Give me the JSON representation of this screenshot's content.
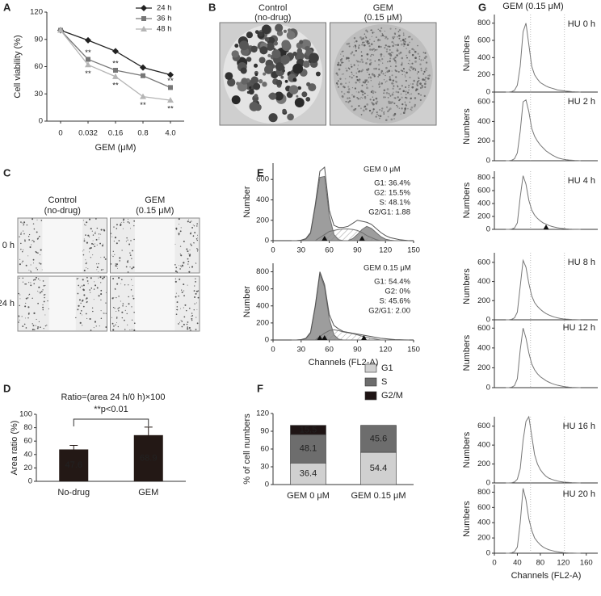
{
  "chart_data": [
    {
      "type": "line",
      "label": "A",
      "y_label": "Cell viability (%)",
      "x_label": "GEM (μM)",
      "categories": [
        "0",
        "0.032",
        "0.16",
        "0.8",
        "4.0"
      ],
      "ylim": [
        0,
        120
      ],
      "yticks": [
        0,
        30,
        60,
        90,
        120
      ],
      "legend": "upper right",
      "series": [
        {
          "name": "24 h",
          "color": "#222222",
          "marker": "diamond",
          "values": [
            100,
            89,
            77,
            59,
            51
          ]
        },
        {
          "name": "36 h",
          "color": "#777777",
          "marker": "square",
          "values": [
            100,
            68,
            56,
            50,
            37
          ],
          "significance": [
            null,
            "**",
            "**",
            "*",
            "**"
          ]
        },
        {
          "name": "48 h",
          "color": "#b5b5b5",
          "marker": "triangle",
          "values": [
            100,
            62,
            49,
            27,
            23
          ],
          "significance": [
            null,
            "**",
            "**",
            "**",
            "**"
          ]
        }
      ]
    },
    {
      "type": "image",
      "label": "B",
      "columns": [
        [
          "Control",
          "(no-drug)"
        ],
        [
          "GEM",
          "(0.15 μM)"
        ]
      ]
    },
    {
      "type": "image",
      "label": "C",
      "columns": [
        [
          "Control",
          "(no-drug)"
        ],
        [
          "GEM",
          "(0.15 μM)"
        ]
      ],
      "rows": [
        "0 h",
        "24 h"
      ]
    },
    {
      "type": "bar",
      "label": "D",
      "title": "Ratio=(area 24 h/0 h)×100",
      "annotation": "**p<0.01",
      "y_label": "Area ratio (%)",
      "categories": [
        "No-drug",
        "GEM"
      ],
      "values": [
        47.6,
        68.9
      ],
      "errors": [
        6,
        12
      ],
      "color": "#231815",
      "ylim": [
        0,
        100
      ],
      "yticks": [
        0,
        20,
        40,
        60,
        80,
        100
      ],
      "data_labels": true
    },
    {
      "type": "histogram",
      "label": "E",
      "title": "GEM 0 μM",
      "annotations": [
        "G1: 36.4%",
        "G2: 15.5%",
        "S: 48.1%",
        "G2/G1: 1.88"
      ],
      "y_label": "Number",
      "xlim": [
        0,
        150
      ],
      "xticks": [
        0,
        30,
        60,
        90,
        120,
        150
      ],
      "ylim": [
        0,
        760
      ],
      "yticks": [
        0,
        200,
        400,
        600
      ],
      "markers": [
        55,
        95
      ],
      "x": [
        20,
        25,
        30,
        35,
        40,
        45,
        50,
        55,
        60,
        65,
        70,
        75,
        80,
        85,
        90,
        95,
        100,
        105,
        110,
        115,
        120,
        125,
        130,
        135,
        140,
        145
      ],
      "series": [
        {
          "color": "#6e6e6e",
          "fill": "#8c8c8c",
          "values": [
            0,
            0,
            3,
            15,
            70,
            330,
            620,
            630,
            250,
            60,
            10,
            0,
            0,
            0,
            0,
            0,
            0,
            0,
            0,
            0,
            0,
            0,
            0,
            0,
            0,
            0
          ]
        },
        {
          "color": "#6e6e6e",
          "fill": "#8c8c8c",
          "values": [
            0,
            0,
            0,
            0,
            0,
            0,
            0,
            0,
            0,
            0,
            0,
            0,
            0,
            20,
            60,
            110,
            140,
            120,
            80,
            40,
            15,
            5,
            0,
            0,
            0,
            0
          ]
        },
        {
          "color": "#6e6e6e",
          "pattern": "hatch",
          "values": [
            0,
            0,
            0,
            0,
            0,
            0,
            30,
            60,
            90,
            100,
            110,
            115,
            115,
            110,
            100,
            80,
            50,
            30,
            10,
            0,
            0,
            0,
            0,
            0,
            0,
            0
          ]
        },
        {
          "color": "#555555",
          "values": [
            0,
            0,
            5,
            20,
            80,
            350,
            680,
            720,
            300,
            150,
            130,
            130,
            140,
            170,
            200,
            190,
            180,
            160,
            120,
            80,
            50,
            30,
            20,
            10,
            5,
            0
          ]
        }
      ]
    },
    {
      "type": "histogram",
      "title": "GEM 0.15 μM",
      "annotations": [
        "G1: 54.4%",
        "G2: 0%",
        "S: 45.6%",
        "G2/G1: 2.00"
      ],
      "y_label": "Number",
      "x_label": "Channels (FL2-A)",
      "xlim": [
        0,
        150
      ],
      "xticks": [
        0,
        30,
        60,
        90,
        120,
        150
      ],
      "ylim": [
        0,
        900
      ],
      "yticks": [
        0,
        200,
        400,
        600,
        800
      ],
      "markers": [
        50,
        55,
        97
      ],
      "x": [
        20,
        25,
        30,
        35,
        40,
        45,
        50,
        55,
        60,
        65,
        70,
        75,
        80,
        85,
        90,
        95,
        100,
        105,
        110,
        115,
        120,
        125,
        130,
        135,
        140,
        145
      ],
      "series": [
        {
          "color": "#6e6e6e",
          "fill": "#8c8c8c",
          "values": [
            0,
            0,
            3,
            15,
            80,
            380,
            780,
            620,
            250,
            60,
            10,
            0,
            0,
            0,
            0,
            0,
            0,
            0,
            0,
            0,
            0,
            0,
            0,
            0,
            0,
            0
          ]
        },
        {
          "color": "#6e6e6e",
          "pattern": "hatch",
          "values": [
            0,
            0,
            0,
            0,
            0,
            0,
            40,
            80,
            110,
            120,
            110,
            95,
            85,
            75,
            60,
            45,
            30,
            20,
            10,
            0,
            0,
            0,
            0,
            0,
            0,
            0
          ]
        },
        {
          "color": "#555555",
          "values": [
            0,
            0,
            5,
            20,
            90,
            400,
            800,
            650,
            300,
            170,
            130,
            100,
            90,
            80,
            70,
            60,
            50,
            40,
            30,
            20,
            15,
            10,
            5,
            3,
            1,
            0
          ]
        }
      ]
    },
    {
      "type": "stacked_bar",
      "label": "F",
      "y_label": "% of cell numbers",
      "categories": [
        "GEM 0 μM",
        "GEM 0.15 μM"
      ],
      "ylim": [
        0,
        120
      ],
      "yticks": [
        0,
        30,
        60,
        90,
        120
      ],
      "data_labels": true,
      "series": [
        {
          "name": "G1",
          "color": "#d0d0d0",
          "values": [
            36.4,
            54.4
          ]
        },
        {
          "name": "S",
          "color": "#6d6d6d",
          "values": [
            48.1,
            45.6
          ]
        },
        {
          "name": "G2/M",
          "color": "#1e1414",
          "values": [
            15.5,
            0
          ]
        }
      ]
    },
    {
      "type": "histogram",
      "label": "G",
      "title": "GEM (0.15 μM)",
      "panel_title": "HU 0 h",
      "y_label": "Numbers",
      "xlim": [
        0,
        180
      ],
      "ylim": [
        0,
        900
      ],
      "yticks": [
        0,
        200,
        400,
        600,
        800
      ],
      "reference_lines": [
        63,
        122
      ],
      "x": [
        20,
        25,
        30,
        35,
        40,
        45,
        50,
        55,
        60,
        65,
        70,
        75,
        80,
        85,
        90,
        95,
        100,
        105,
        110,
        115,
        120,
        125,
        130,
        135,
        140,
        145,
        150
      ],
      "series": [
        {
          "color": "#777777",
          "values": [
            0,
            0,
            5,
            20,
            80,
            300,
            700,
            800,
            550,
            300,
            200,
            150,
            110,
            90,
            70,
            55,
            45,
            35,
            25,
            20,
            15,
            10,
            8,
            5,
            3,
            2,
            0
          ]
        }
      ]
    },
    {
      "type": "histogram",
      "panel_title": "HU 2 h",
      "y_label": "Numbers",
      "xlim": [
        0,
        180
      ],
      "ylim": [
        0,
        700
      ],
      "yticks": [
        0,
        200,
        400,
        600
      ],
      "reference_lines": [
        63,
        122
      ],
      "x": [
        20,
        25,
        30,
        35,
        40,
        45,
        50,
        55,
        60,
        65,
        70,
        75,
        80,
        85,
        90,
        95,
        100,
        105,
        110,
        115,
        120,
        125,
        130,
        135,
        140,
        145,
        150
      ],
      "series": [
        {
          "color": "#777777",
          "values": [
            0,
            0,
            5,
            20,
            80,
            300,
            600,
            620,
            500,
            330,
            250,
            200,
            160,
            130,
            100,
            80,
            60,
            45,
            30,
            22,
            15,
            10,
            7,
            5,
            3,
            2,
            0
          ]
        }
      ]
    },
    {
      "type": "histogram",
      "panel_title": "HU 4 h",
      "y_label": "Numbers",
      "xlim": [
        0,
        180
      ],
      "ylim": [
        0,
        900
      ],
      "yticks": [
        0,
        200,
        400,
        600,
        800
      ],
      "reference_lines": [
        63,
        122
      ],
      "markers": [
        90
      ],
      "x": [
        20,
        25,
        30,
        35,
        40,
        45,
        50,
        55,
        60,
        65,
        70,
        75,
        80,
        85,
        90,
        95,
        100,
        105,
        110,
        115,
        120,
        125,
        130,
        135,
        140,
        145,
        150
      ],
      "series": [
        {
          "color": "#777777",
          "values": [
            0,
            0,
            5,
            20,
            100,
            500,
            830,
            700,
            450,
            300,
            220,
            170,
            130,
            100,
            80,
            60,
            45,
            35,
            25,
            18,
            12,
            8,
            5,
            3,
            2,
            1,
            0
          ]
        }
      ]
    },
    {
      "type": "histogram",
      "panel_title": "HU 8 h",
      "y_label": "Numbers",
      "xlim": [
        0,
        180
      ],
      "ylim": [
        0,
        700
      ],
      "yticks": [
        0,
        200,
        400,
        600
      ],
      "reference_lines": [
        63,
        122
      ],
      "x": [
        20,
        25,
        30,
        35,
        40,
        45,
        50,
        55,
        60,
        65,
        70,
        75,
        80,
        85,
        90,
        95,
        100,
        105,
        110,
        115,
        120,
        125,
        130,
        135,
        140,
        145,
        150
      ],
      "series": [
        {
          "color": "#777777",
          "values": [
            0,
            0,
            5,
            20,
            80,
            350,
            620,
            550,
            380,
            250,
            180,
            140,
            110,
            85,
            65,
            50,
            38,
            28,
            20,
            14,
            10,
            7,
            5,
            3,
            2,
            1,
            0
          ]
        }
      ]
    },
    {
      "type": "histogram",
      "panel_title": "HU 12 h",
      "y_label": "Numbers",
      "xlim": [
        0,
        180
      ],
      "ylim": [
        0,
        700
      ],
      "yticks": [
        0,
        200,
        400,
        600
      ],
      "reference_lines": [
        63,
        122
      ],
      "x": [
        20,
        25,
        30,
        35,
        40,
        45,
        50,
        55,
        60,
        65,
        70,
        75,
        80,
        85,
        90,
        95,
        100,
        105,
        110,
        115,
        120,
        125,
        130,
        135,
        140,
        145,
        150
      ],
      "series": [
        {
          "color": "#777777",
          "values": [
            0,
            0,
            5,
            20,
            90,
            380,
            600,
            500,
            350,
            240,
            180,
            140,
            110,
            90,
            70,
            55,
            42,
            32,
            24,
            18,
            12,
            8,
            5,
            3,
            2,
            1,
            0
          ]
        }
      ]
    },
    {
      "type": "histogram",
      "panel_title": "HU 16 h",
      "y_label": "Numbers",
      "xlim": [
        0,
        180
      ],
      "ylim": [
        0,
        700
      ],
      "yticks": [
        0,
        200,
        400,
        600
      ],
      "reference_lines": [
        63,
        122
      ],
      "x": [
        20,
        25,
        30,
        35,
        40,
        45,
        50,
        55,
        60,
        65,
        70,
        75,
        80,
        85,
        90,
        95,
        100,
        105,
        110,
        115,
        120,
        125,
        130,
        135,
        140,
        145,
        150
      ],
      "series": [
        {
          "color": "#777777",
          "values": [
            0,
            0,
            2,
            10,
            40,
            150,
            450,
            650,
            700,
            500,
            300,
            200,
            140,
            100,
            70,
            50,
            38,
            28,
            20,
            14,
            10,
            7,
            5,
            3,
            2,
            1,
            0
          ]
        }
      ]
    },
    {
      "type": "histogram",
      "panel_title": "HU 20 h",
      "y_label": "Numbers",
      "x_label": "Channels (FL2-A)",
      "xlim": [
        0,
        180
      ],
      "xticks": [
        0,
        40,
        80,
        120,
        160
      ],
      "ylim": [
        0,
        900
      ],
      "yticks": [
        0,
        200,
        400,
        600,
        800
      ],
      "reference_lines": [
        63,
        122
      ],
      "x": [
        20,
        25,
        30,
        35,
        40,
        45,
        50,
        55,
        60,
        65,
        70,
        75,
        80,
        85,
        90,
        95,
        100,
        105,
        110,
        115,
        120,
        125,
        130,
        135,
        140,
        145,
        150
      ],
      "series": [
        {
          "color": "#777777",
          "values": [
            0,
            0,
            5,
            20,
            80,
            400,
            850,
            700,
            450,
            300,
            200,
            150,
            110,
            80,
            60,
            45,
            35,
            25,
            18,
            12,
            8,
            5,
            3,
            2,
            1,
            0,
            0
          ]
        }
      ]
    }
  ]
}
